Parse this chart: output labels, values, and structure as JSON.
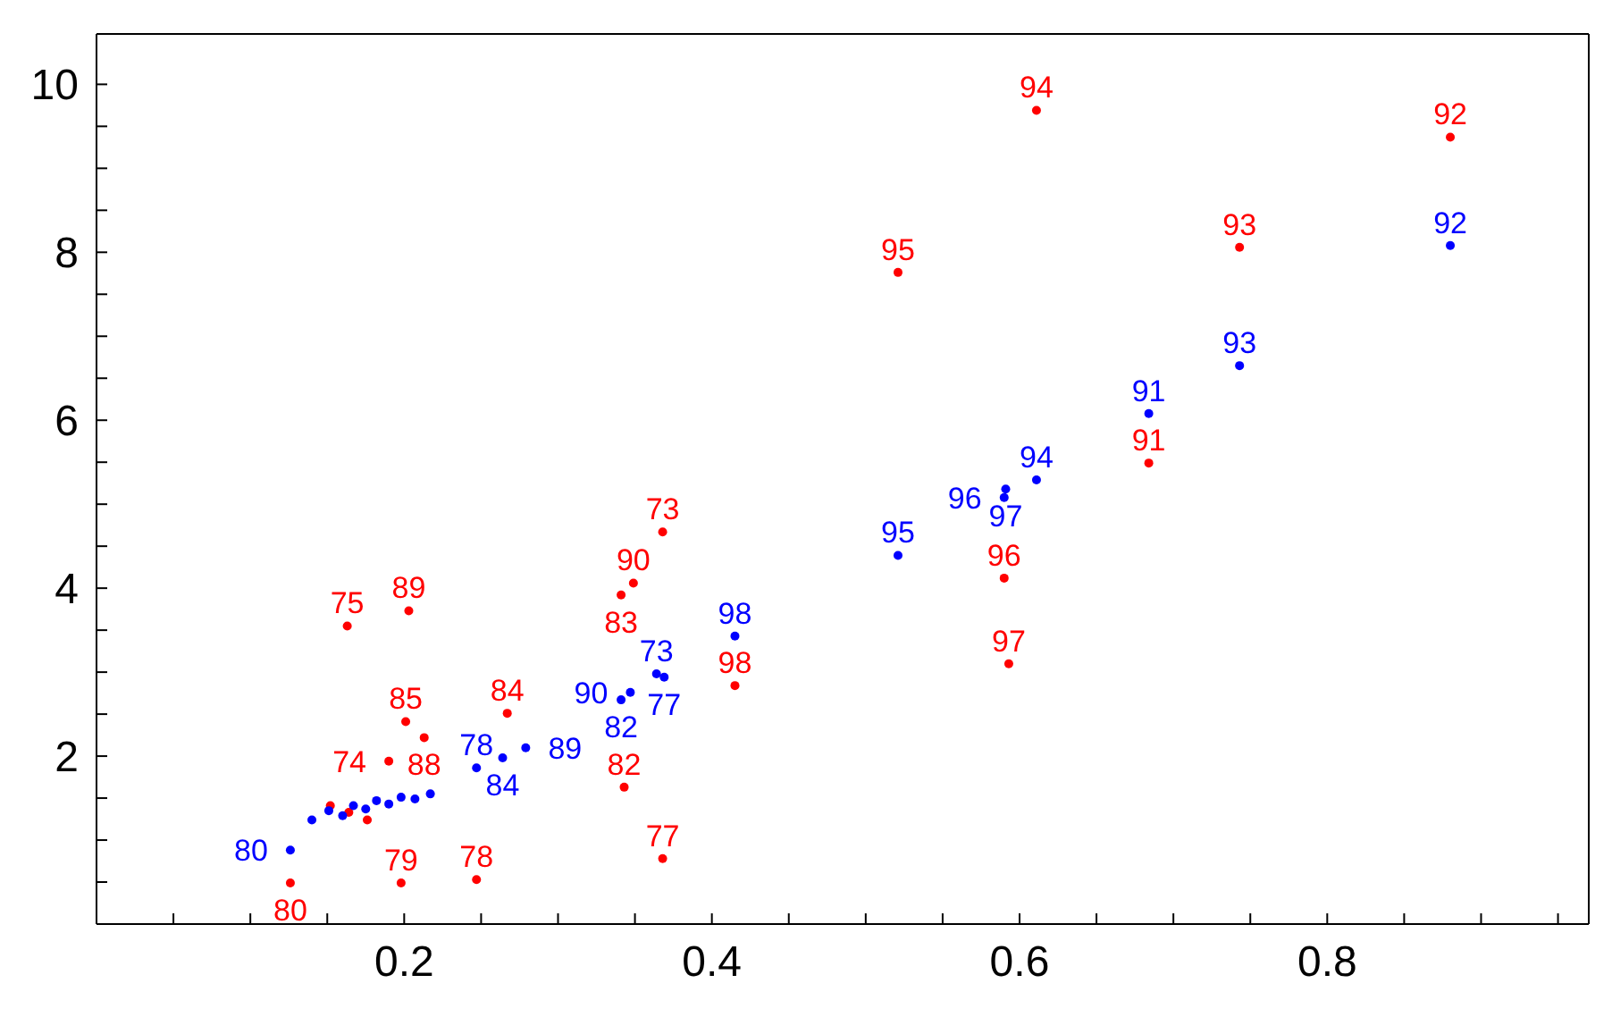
{
  "chart_data": {
    "type": "scatter",
    "marker": "circle",
    "xlim": [
      0,
      0.97
    ],
    "ylim": [
      0,
      10.6
    ],
    "xticks": [
      {
        "value": 0.05,
        "label": null
      },
      {
        "value": 0.1,
        "label": null
      },
      {
        "value": 0.15,
        "label": null
      },
      0.2,
      {
        "value": 0.25,
        "label": null
      },
      {
        "value": 0.3,
        "label": null
      },
      {
        "value": 0.35,
        "label": null
      },
      0.4,
      {
        "value": 0.45,
        "label": null
      },
      {
        "value": 0.5,
        "label": null
      },
      {
        "value": 0.55,
        "label": null
      },
      0.6,
      {
        "value": 0.65,
        "label": null
      },
      {
        "value": 0.7,
        "label": null
      },
      {
        "value": 0.75,
        "label": null
      },
      0.8,
      {
        "value": 0.85,
        "label": null
      },
      {
        "value": 0.9,
        "label": null
      },
      {
        "value": 0.95,
        "label": null
      }
    ],
    "yticks": [
      {
        "value": 0.5,
        "label": null
      },
      {
        "value": 1,
        "label": null
      },
      {
        "value": 1.5,
        "label": null
      },
      2,
      {
        "value": 2.5,
        "label": null
      },
      {
        "value": 3,
        "label": null
      },
      {
        "value": 3.5,
        "label": null
      },
      4,
      {
        "value": 4.5,
        "label": null
      },
      {
        "value": 5,
        "label": null
      },
      {
        "value": 5.5,
        "label": null
      },
      6,
      {
        "value": 6.5,
        "label": null
      },
      {
        "value": 7,
        "label": null
      },
      {
        "value": 7.5,
        "label": null
      },
      8,
      {
        "value": 8.5,
        "label": null
      },
      {
        "value": 9,
        "label": null
      },
      {
        "value": 9.5,
        "label": null
      },
      10
    ],
    "series": [
      {
        "color": "#ff0000",
        "x": [
          0.611,
          0.88,
          0.743,
          0.521,
          0.684,
          0.59,
          0.593,
          0.368,
          0.349,
          0.341,
          0.415,
          0.343,
          0.368,
          0.267,
          0.163,
          0.203,
          0.201,
          0.213,
          0.19,
          0.126,
          0.198,
          0.247,
          0.152,
          0.164,
          0.176
        ],
        "values": [
          9.69,
          9.37,
          8.06,
          7.76,
          5.49,
          4.12,
          3.1,
          4.67,
          4.06,
          3.92,
          2.84,
          1.63,
          0.78,
          2.51,
          3.55,
          3.73,
          2.41,
          2.22,
          1.94,
          0.49,
          0.49,
          0.53,
          1.41,
          1.33,
          1.24
        ]
      },
      {
        "color": "#0000ff",
        "x": [
          0.88,
          0.743,
          0.684,
          0.611,
          0.591,
          0.59,
          0.521,
          0.415,
          0.364,
          0.369,
          0.347,
          0.341,
          0.247,
          0.264,
          0.279,
          0.126,
          0.14,
          0.151,
          0.16,
          0.167,
          0.175,
          0.182,
          0.19,
          0.198,
          0.207,
          0.217
        ],
        "values": [
          8.08,
          6.65,
          6.08,
          5.29,
          5.18,
          5.08,
          4.39,
          3.43,
          2.98,
          2.94,
          2.76,
          2.67,
          1.86,
          1.98,
          2.1,
          0.88,
          1.24,
          1.35,
          1.29,
          1.41,
          1.37,
          1.47,
          1.43,
          1.51,
          1.49,
          1.55
        ]
      }
    ],
    "annotations": [
      {
        "text": "94",
        "x": 0.611,
        "y": 9.69
      },
      {
        "text": "92",
        "x": 0.88,
        "y": 9.37
      },
      {
        "text": "93",
        "x": 0.743,
        "y": 8.06
      },
      {
        "text": "95",
        "x": 0.521,
        "y": 7.76
      },
      {
        "text": "91",
        "x": 0.684,
        "y": 5.49
      },
      {
        "text": "96",
        "x": 0.59,
        "y": 4.12
      },
      {
        "text": "97",
        "x": 0.593,
        "y": 3.1
      },
      {
        "text": "73",
        "x": 0.368,
        "y": 4.67
      },
      {
        "text": "90",
        "x": 0.349,
        "y": 4.06
      },
      {
        "text": "83",
        "x": 0.341,
        "y": 3.92
      },
      {
        "text": "98",
        "x": 0.415,
        "y": 2.84
      },
      {
        "text": "82",
        "x": 0.343,
        "y": 1.63
      },
      {
        "text": "77",
        "x": 0.368,
        "y": 0.78
      },
      {
        "text": "84",
        "x": 0.267,
        "y": 2.51
      },
      {
        "text": "75",
        "x": 0.163,
        "y": 3.55
      },
      {
        "text": "89",
        "x": 0.203,
        "y": 3.73
      },
      {
        "text": "85",
        "x": 0.201,
        "y": 2.41
      },
      {
        "text": "88",
        "x": 0.213,
        "y": 2.22
      },
      {
        "text": "74",
        "x": 0.19,
        "y": 1.94
      },
      {
        "text": "80",
        "x": 0.126,
        "y": 0.49
      },
      {
        "text": "79",
        "x": 0.198,
        "y": 0.49
      },
      {
        "text": "78",
        "x": 0.247,
        "y": 0.53
      },
      {
        "text": "92",
        "x": 0.88,
        "y": 8.08
      },
      {
        "text": "93",
        "x": 0.743,
        "y": 6.65
      },
      {
        "text": "91",
        "x": 0.684,
        "y": 6.08
      },
      {
        "text": "94",
        "x": 0.611,
        "y": 5.29
      },
      {
        "text": "97",
        "x": 0.591,
        "y": 5.18
      },
      {
        "text": "96",
        "x": 0.59,
        "y": 5.08
      },
      {
        "text": "95",
        "x": 0.521,
        "y": 4.39
      },
      {
        "text": "98",
        "x": 0.415,
        "y": 3.43
      },
      {
        "text": "73",
        "x": 0.364,
        "y": 2.98
      },
      {
        "text": "77",
        "x": 0.369,
        "y": 2.94
      },
      {
        "text": "90",
        "x": 0.347,
        "y": 2.76
      },
      {
        "text": "82",
        "x": 0.341,
        "y": 2.67
      },
      {
        "text": "78",
        "x": 0.247,
        "y": 1.86
      },
      {
        "text": "84",
        "x": 0.264,
        "y": 1.98
      },
      {
        "text": "89",
        "x": 0.279,
        "y": 2.1
      },
      {
        "text": "80",
        "x": 0.126,
        "y": 0.88
      }
    ]
  }
}
